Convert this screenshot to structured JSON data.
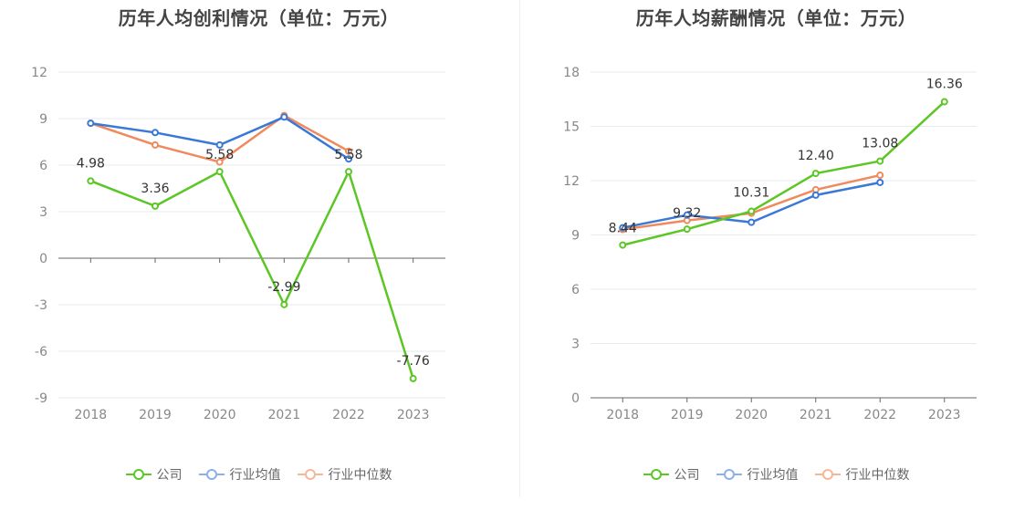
{
  "colors": {
    "company": "#5cc625",
    "industry_avg": "#3a78d8",
    "industry_median": "#f08a5d",
    "grid": "#e6e9f0",
    "axis": "#666666",
    "tick": "#888888",
    "label": "#333333"
  },
  "legend_labels": [
    "公司",
    "行业均值",
    "行业中位数"
  ],
  "chart_data": [
    {
      "type": "line",
      "title": "历年人均创利情况（单位：万元）",
      "categories": [
        "2018",
        "2019",
        "2020",
        "2021",
        "2022",
        "2023"
      ],
      "ylim": [
        -9,
        12
      ],
      "yticks": [
        12,
        9,
        6,
        3,
        0,
        -3,
        -6,
        -9
      ],
      "series": [
        {
          "name": "公司",
          "values": [
            4.98,
            3.36,
            5.58,
            -2.99,
            5.58,
            -7.76
          ]
        },
        {
          "name": "行业均值",
          "values": [
            8.7,
            8.1,
            7.3,
            9.1,
            6.4,
            null
          ]
        },
        {
          "name": "行业中位数",
          "values": [
            8.7,
            7.3,
            6.2,
            9.2,
            6.9,
            null
          ]
        }
      ],
      "data_labels": [
        "4.98",
        "3.36",
        "5.58",
        "-2.99",
        "5.58",
        "-7.76"
      ]
    },
    {
      "type": "line",
      "title": "历年人均薪酬情况（单位：万元）",
      "categories": [
        "2018",
        "2019",
        "2020",
        "2021",
        "2022",
        "2023"
      ],
      "ylim": [
        0,
        18
      ],
      "yticks": [
        18,
        15,
        12,
        9,
        6,
        3,
        0
      ],
      "series": [
        {
          "name": "公司",
          "values": [
            8.44,
            9.32,
            10.31,
            12.4,
            13.08,
            16.36
          ]
        },
        {
          "name": "行业均值",
          "values": [
            9.4,
            10.1,
            9.7,
            11.2,
            11.9,
            null
          ]
        },
        {
          "name": "行业中位数",
          "values": [
            9.3,
            9.8,
            10.2,
            11.5,
            12.3,
            null
          ]
        }
      ],
      "data_labels": [
        "8.44",
        "9.32",
        "10.31",
        "12.40",
        "13.08",
        "16.36"
      ]
    }
  ]
}
